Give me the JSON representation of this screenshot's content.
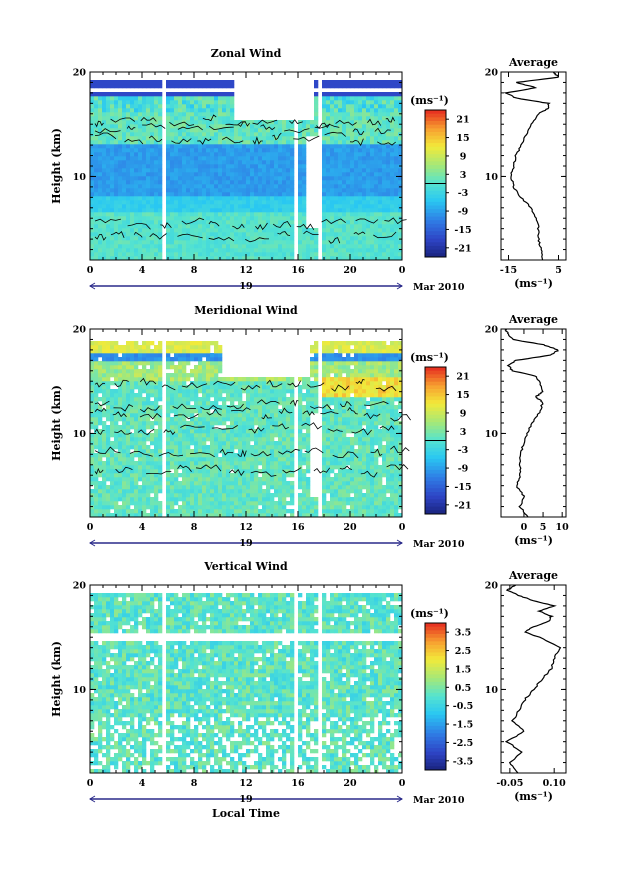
{
  "chart_data": [
    {
      "type": "heatmap",
      "title": "Zonal Wind",
      "ylabel": "Height (km)",
      "yticks": [
        "20",
        "10"
      ],
      "xticks": [
        "0",
        "4",
        "8",
        "12",
        "16",
        "20",
        "0"
      ],
      "xlim": [
        0,
        24
      ],
      "ylim": [
        2,
        20
      ],
      "day_label": "19",
      "month_label": "Mar 2010",
      "colorbar": {
        "unit": "(ms⁻¹)",
        "labels": [
          "21",
          "15",
          "9",
          "3",
          "-3",
          "-9",
          "-15",
          "-21"
        ],
        "values": [
          21,
          15,
          9,
          3,
          -3,
          -9,
          -15,
          -21
        ],
        "range": [
          -24,
          24
        ]
      },
      "average": {
        "title": "Average",
        "xticks": [
          "-15",
          "5"
        ],
        "xtick_values": [
          -15,
          5
        ],
        "xlim": [
          -18,
          8
        ],
        "xlabel": "(ms⁻¹)",
        "yticks": [
          "20",
          "10"
        ],
        "profile": [
          [
            2,
            -1
          ],
          [
            3,
            -2
          ],
          [
            4,
            -3
          ],
          [
            5,
            -3
          ],
          [
            6,
            -4
          ],
          [
            7,
            -6
          ],
          [
            8,
            -10
          ],
          [
            9,
            -13
          ],
          [
            10,
            -14
          ],
          [
            11,
            -13
          ],
          [
            12,
            -12
          ],
          [
            13,
            -10
          ],
          [
            14,
            -8
          ],
          [
            15,
            -6
          ],
          [
            16,
            -3
          ],
          [
            16.5,
            1
          ],
          [
            17,
            1
          ],
          [
            17.5,
            -12
          ],
          [
            18,
            -16
          ],
          [
            18.5,
            -4
          ],
          [
            19,
            -12
          ],
          [
            19.5,
            5
          ],
          [
            20,
            3
          ]
        ]
      }
    },
    {
      "type": "heatmap",
      "title": "Meridional Wind",
      "ylabel": "Height (km)",
      "yticks": [
        "20",
        "10"
      ],
      "xticks": [
        "0",
        "4",
        "8",
        "12",
        "16",
        "20",
        "0"
      ],
      "xlim": [
        0,
        24
      ],
      "ylim": [
        2,
        20
      ],
      "day_label": "19",
      "month_label": "Mar 2010",
      "colorbar": {
        "unit": "(ms⁻¹)",
        "labels": [
          "21",
          "15",
          "9",
          "3",
          "-3",
          "-9",
          "-15",
          "-21"
        ],
        "values": [
          21,
          15,
          9,
          3,
          -3,
          -9,
          -15,
          -21
        ],
        "range": [
          -24,
          24
        ]
      },
      "average": {
        "title": "Average",
        "xticks": [
          "0",
          "5",
          "10"
        ],
        "xtick_values": [
          0,
          5,
          10
        ],
        "xlim": [
          -6,
          11
        ],
        "xlabel": "(ms⁻¹)",
        "yticks": [
          "20",
          "10"
        ],
        "profile": [
          [
            2,
            1
          ],
          [
            3,
            -1
          ],
          [
            4,
            0
          ],
          [
            5,
            -2
          ],
          [
            6,
            -1
          ],
          [
            7,
            -1
          ],
          [
            8,
            -1
          ],
          [
            9,
            0
          ],
          [
            10,
            1
          ],
          [
            11,
            2
          ],
          [
            12,
            4
          ],
          [
            13,
            5
          ],
          [
            13.5,
            3
          ],
          [
            14,
            5
          ],
          [
            15,
            4
          ],
          [
            15.5,
            3
          ],
          [
            16,
            -3
          ],
          [
            16.5,
            -4
          ],
          [
            17,
            -2
          ],
          [
            17.5,
            7
          ],
          [
            18,
            9
          ],
          [
            18.5,
            5
          ],
          [
            19,
            -3
          ],
          [
            19.5,
            -4
          ],
          [
            20,
            -5
          ]
        ]
      }
    },
    {
      "type": "heatmap",
      "title": "Vertical Wind",
      "ylabel": "Height (km)",
      "xlabel": "Local Time",
      "yticks": [
        "20",
        "10"
      ],
      "xticks": [
        "0",
        "4",
        "8",
        "12",
        "16",
        "20",
        "0"
      ],
      "xlim": [
        0,
        24
      ],
      "ylim": [
        2,
        20
      ],
      "day_label": "19",
      "month_label": "Mar 2010",
      "colorbar": {
        "unit": "(ms⁻¹)",
        "labels": [
          "3.5",
          "2.5",
          "1.5",
          "0.5",
          "-0.5",
          "-1.5",
          "-2.5",
          "-3.5"
        ],
        "values": [
          3.5,
          2.5,
          1.5,
          0.5,
          -0.5,
          -1.5,
          -2.5,
          -3.5
        ],
        "range": [
          -4,
          4
        ]
      },
      "average": {
        "title": "Average",
        "xticks": [
          "-0.05",
          "0.10"
        ],
        "xtick_values": [
          -0.05,
          0.1
        ],
        "xlim": [
          -0.08,
          0.14
        ],
        "xlabel": "(ms⁻¹)",
        "yticks": [
          "20",
          "10"
        ],
        "profile": [
          [
            2,
            -0.02
          ],
          [
            3,
            -0.05
          ],
          [
            4,
            -0.01
          ],
          [
            5,
            -0.06
          ],
          [
            6,
            0.0
          ],
          [
            7,
            -0.04
          ],
          [
            8,
            -0.02
          ],
          [
            9,
            0.0
          ],
          [
            10,
            0.03
          ],
          [
            11,
            0.06
          ],
          [
            12,
            0.09
          ],
          [
            13,
            0.1
          ],
          [
            14,
            0.12
          ],
          [
            15,
            0.05
          ],
          [
            15.5,
            0.0
          ],
          [
            16,
            0.03
          ],
          [
            16.5,
            0.08
          ],
          [
            17,
            0.09
          ],
          [
            17.5,
            0.05
          ],
          [
            18,
            0.1
          ],
          [
            18.5,
            0.03
          ],
          [
            19,
            -0.02
          ],
          [
            19.5,
            -0.06
          ],
          [
            20,
            -0.03
          ]
        ]
      }
    }
  ]
}
